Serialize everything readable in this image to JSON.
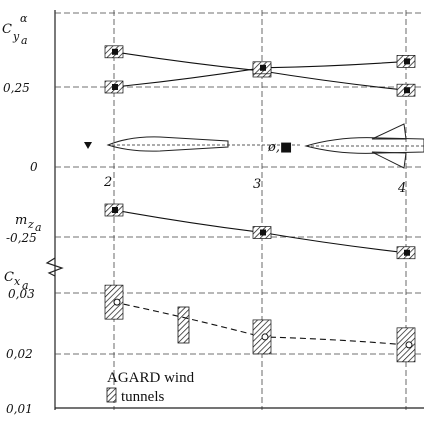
{
  "chart_data": [
    {
      "type": "line",
      "ylabel": "Cyα a",
      "x": [
        2,
        3,
        4
      ],
      "yticks": [
        "0,25"
      ],
      "ylim": [
        0.1,
        0.42
      ],
      "series": [
        {
          "values": [
            0.36,
            0.3,
            0.24
          ],
          "marker": "square"
        },
        {
          "values": [
            0.25,
            0.31,
            0.33
          ],
          "marker": "square"
        }
      ]
    },
    {
      "type": "line",
      "ylabel": "mza",
      "x": [
        2,
        3,
        4
      ],
      "yticks": [
        "-0,25"
      ],
      "ylim": [
        -0.35,
        -0.15
      ],
      "series": [
        {
          "values": [
            -0.19,
            -0.24,
            -0.285
          ],
          "marker": "square"
        }
      ]
    },
    {
      "type": "line",
      "ylabel": "Cxa",
      "x": [
        2,
        3,
        4
      ],
      "yticks": [
        "0,03",
        "0,02",
        "0,01"
      ],
      "ylim": [
        0.01,
        0.035
      ],
      "series": [
        {
          "values": [
            0.0285,
            0.0228,
            0.0215
          ],
          "marker": "circle",
          "dashed": true
        }
      ]
    }
  ],
  "xticks": [
    "2",
    "3",
    "4"
  ],
  "zero_label": "0",
  "model_symbol": "ø,■",
  "legend": {
    "line1": "AGARD wind",
    "line2": "tunnels"
  }
}
